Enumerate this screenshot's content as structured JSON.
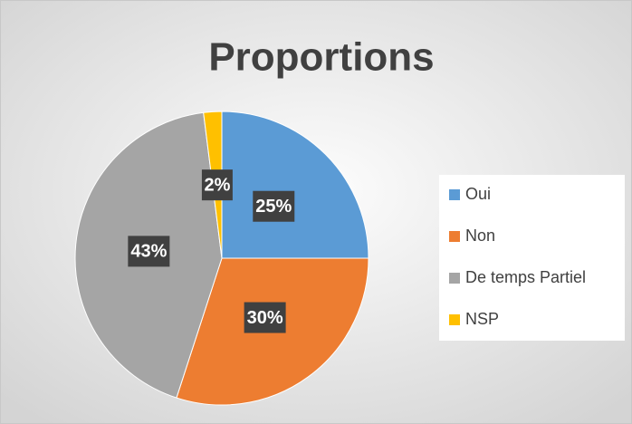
{
  "chart_data": {
    "type": "pie",
    "title": "Proportions",
    "categories": [
      "Oui",
      "Non",
      "De temps Partiel",
      "NSP"
    ],
    "values": [
      25,
      30,
      43,
      2
    ],
    "value_labels": [
      "25%",
      "30%",
      "43%",
      "2%"
    ],
    "colors": [
      "#5b9bd5",
      "#ed7d31",
      "#a5a5a5",
      "#ffc000"
    ],
    "legend": "right"
  }
}
